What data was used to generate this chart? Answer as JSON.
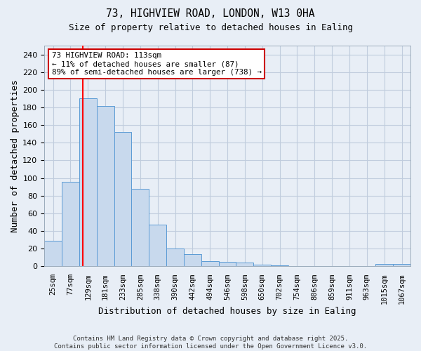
{
  "title1": "73, HIGHVIEW ROAD, LONDON, W13 0HA",
  "title2": "Size of property relative to detached houses in Ealing",
  "xlabel": "Distribution of detached houses by size in Ealing",
  "ylabel": "Number of detached properties",
  "categories": [
    "25sqm",
    "77sqm",
    "129sqm",
    "181sqm",
    "233sqm",
    "285sqm",
    "338sqm",
    "390sqm",
    "442sqm",
    "494sqm",
    "546sqm",
    "598sqm",
    "650sqm",
    "702sqm",
    "754sqm",
    "806sqm",
    "859sqm",
    "911sqm",
    "963sqm",
    "1015sqm",
    "1067sqm"
  ],
  "values": [
    29,
    96,
    190,
    182,
    152,
    88,
    47,
    20,
    14,
    6,
    5,
    4,
    2,
    1,
    0,
    0,
    0,
    0,
    0,
    3,
    3
  ],
  "bar_color": "#c8d9ed",
  "bar_edgecolor": "#5b9bd5",
  "bar_linewidth": 0.7,
  "annotation_text": "73 HIGHVIEW ROAD: 113sqm\n← 11% of detached houses are smaller (87)\n89% of semi-detached houses are larger (738) →",
  "annotation_box_color": "#ffffff",
  "annotation_box_edgecolor": "#cc0000",
  "grid_color": "#c0ccdd",
  "background_color": "#e8eef6",
  "plot_background": "#e8eef6",
  "ylim": [
    0,
    250
  ],
  "yticks": [
    0,
    20,
    40,
    60,
    80,
    100,
    120,
    140,
    160,
    180,
    200,
    220,
    240
  ],
  "footer": "Contains HM Land Registry data © Crown copyright and database right 2025.\nContains public sector information licensed under the Open Government Licence v3.0."
}
